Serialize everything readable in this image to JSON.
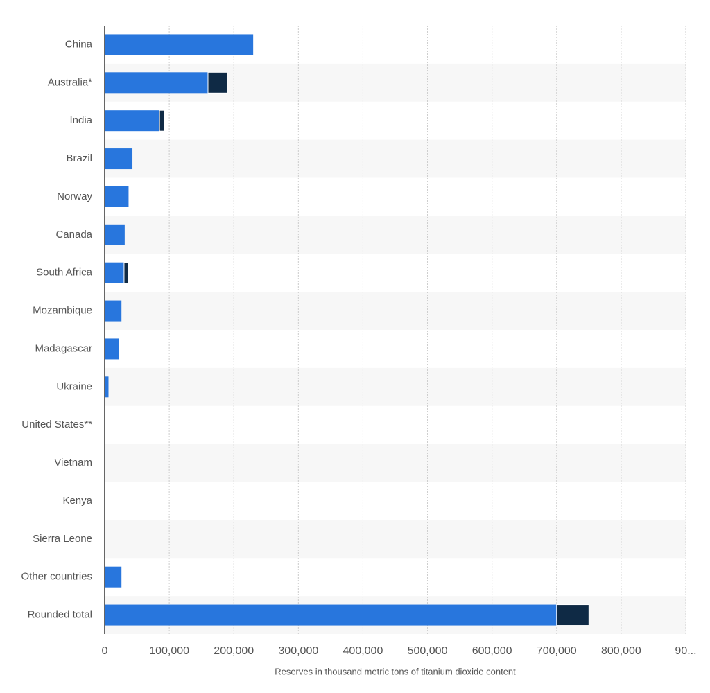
{
  "chart_data": {
    "type": "hbar-stacked",
    "x_label": "Reserves in thousand metric tons of titanium dioxide content",
    "categories": [
      "China",
      "Australia*",
      "India",
      "Brazil",
      "Norway",
      "Canada",
      "South Africa",
      "Mozambique",
      "Madagascar",
      "Ukraine",
      "United States**",
      "Vietnam",
      "Kenya",
      "Sierra Leone",
      "Other countries",
      "Rounded total"
    ],
    "series": [
      {
        "color": "#2876dd",
        "values": [
          230000,
          160000,
          85000,
          43000,
          37000,
          31000,
          30000,
          26000,
          22000,
          5900,
          0,
          0,
          0,
          0,
          26000,
          700000
        ]
      },
      {
        "color": "#0f2a45",
        "values": [
          0,
          30000,
          7400,
          0,
          0,
          0,
          6100,
          0,
          0,
          0,
          0,
          0,
          0,
          0,
          0,
          50000
        ]
      }
    ],
    "xlim": [
      0,
      900000
    ],
    "xticks": [
      0,
      {
        "value": 100000,
        "label": "100,000"
      },
      {
        "value": 200000,
        "label": "200,000"
      },
      {
        "value": 300000,
        "label": "300,000"
      },
      {
        "value": 400000,
        "label": "400,000"
      },
      {
        "value": 500000,
        "label": "500,000"
      },
      {
        "value": 600000,
        "label": "600,000"
      },
      {
        "value": 700000,
        "label": "700,000"
      },
      {
        "value": 800000,
        "label": "800,000"
      },
      {
        "value": 900000,
        "label": "90..."
      }
    ],
    "grid": true
  }
}
